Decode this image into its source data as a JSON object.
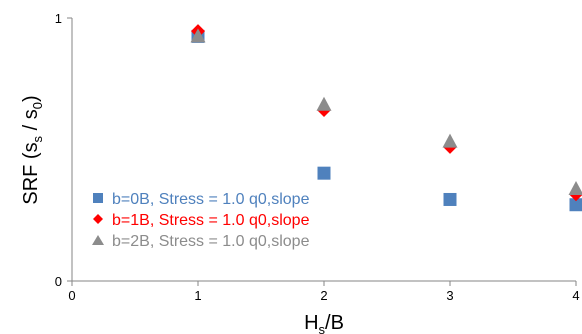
{
  "chart_data": {
    "type": "scatter",
    "xlabel": "H",
    "xlabel_sub": "s",
    "xlabel_rest": "/B",
    "ylabel_parts": [
      "SRF (s",
      "s",
      " / s",
      "0",
      ")"
    ],
    "xlim": [
      0,
      4
    ],
    "ylim": [
      0,
      1
    ],
    "x_ticks": [
      0,
      1,
      2,
      3,
      4
    ],
    "y_ticks": [
      0,
      1
    ],
    "x_tick_labels": [
      "0",
      "1",
      "2",
      "3",
      "4"
    ],
    "y_tick_labels": [
      "0",
      "1"
    ],
    "grid": false,
    "legend_position": "lower-left",
    "series": [
      {
        "name": "b=0B, Stress = 1.0 q0,slope",
        "marker": "square",
        "color": "#4F81BD",
        "x": [
          1,
          2,
          3,
          4
        ],
        "y": [
          0.93,
          0.41,
          0.31,
          0.29
        ]
      },
      {
        "name": "b=1B, Stress = 1.0 q0,slope",
        "marker": "diamond",
        "color": "#FF0000",
        "x": [
          1,
          2,
          3,
          4
        ],
        "y": [
          0.95,
          0.65,
          0.51,
          0.33
        ]
      },
      {
        "name": "b=2B, Stress = 1.0 q0,slope",
        "marker": "triangle",
        "color": "#8C8C8C",
        "x": [
          1,
          2,
          3,
          4
        ],
        "y": [
          0.93,
          0.67,
          0.53,
          0.35
        ]
      }
    ]
  }
}
